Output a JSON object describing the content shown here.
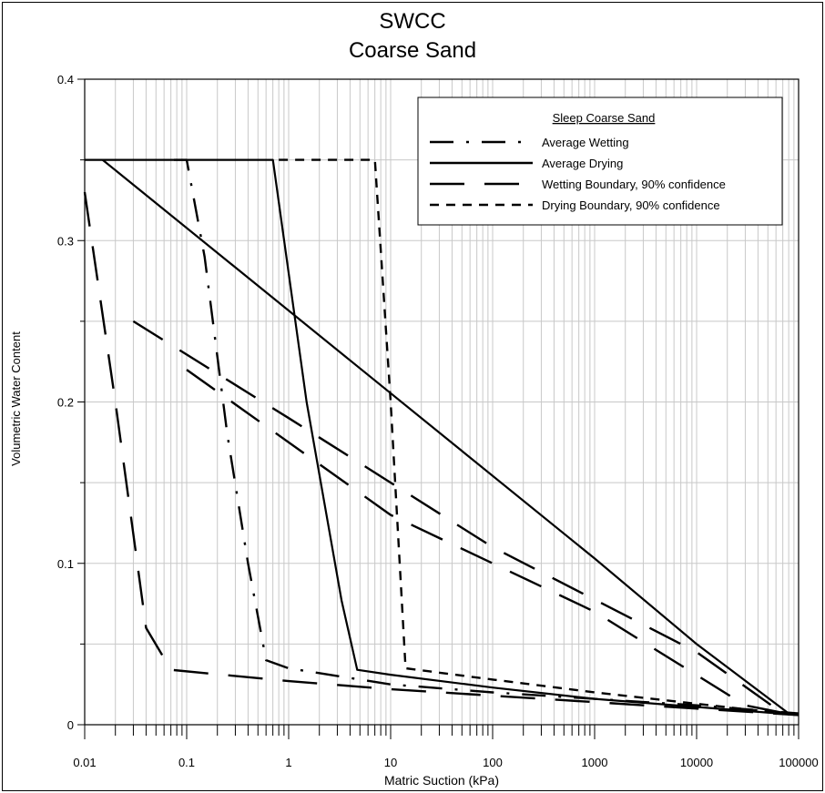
{
  "chart_data": {
    "type": "line",
    "title": "SWCC",
    "subtitle": "Coarse Sand",
    "xlabel": "Matric Suction (kPa)",
    "ylabel": "Volumetric Water Content",
    "xscale": "log",
    "xlim": [
      0.01,
      100000
    ],
    "ylim": [
      0,
      0.4
    ],
    "x_ticks": [
      0.01,
      0.1,
      1,
      10,
      100,
      1000,
      10000,
      100000
    ],
    "x_tick_labels": [
      "0.01",
      "0.1",
      "1",
      "10",
      "100",
      "1000",
      "10000",
      "100000"
    ],
    "y_ticks": [
      0,
      0.1,
      0.2,
      0.3,
      0.4
    ],
    "y_tick_labels": [
      "0",
      "0.1",
      "0.2",
      "0.3",
      "0.4"
    ],
    "grid": true,
    "legend": {
      "title": "Sleep Coarse Sand",
      "position": "top-right"
    },
    "series": [
      {
        "name": "Average Wetting",
        "style": "dash-dot",
        "points": [
          [
            0.075,
            0.35
          ],
          [
            0.1,
            0.35
          ],
          [
            0.15,
            0.29
          ],
          [
            0.25,
            0.18
          ],
          [
            0.4,
            0.1
          ],
          [
            0.6,
            0.04
          ],
          [
            1,
            0.035
          ],
          [
            10,
            0.025
          ],
          [
            100,
            0.02
          ],
          [
            1000,
            0.016
          ],
          [
            10000,
            0.012
          ],
          [
            100000,
            0.007
          ]
        ]
      },
      {
        "name": "Average Drying",
        "style": "solid",
        "points": [
          [
            0.01,
            0.35
          ],
          [
            0.7,
            0.35
          ],
          [
            1.5,
            0.2
          ],
          [
            3.3,
            0.077
          ],
          [
            4.7,
            0.034
          ],
          [
            10,
            0.031
          ],
          [
            100,
            0.023
          ],
          [
            1000,
            0.016
          ],
          [
            10000,
            0.011
          ],
          [
            100000,
            0.006
          ]
        ]
      },
      {
        "name": "Wetting Boundary, 90% confidence",
        "style": "long-dash",
        "points": [
          [
            0.01,
            0.33
          ],
          [
            0.02,
            0.2
          ],
          [
            0.04,
            0.06
          ],
          [
            0.07,
            0.034
          ],
          [
            1,
            0.027
          ],
          [
            10,
            0.022
          ],
          [
            100,
            0.018
          ],
          [
            1000,
            0.014
          ],
          [
            10000,
            0.01
          ],
          [
            100000,
            0.006
          ]
        ]
      },
      {
        "name": "Drying Boundary, 90% confidence",
        "style": "short-dash",
        "points": [
          [
            0.8,
            0.35
          ],
          [
            7,
            0.35
          ],
          [
            10,
            0.2
          ],
          [
            14,
            0.035
          ],
          [
            100,
            0.028
          ],
          [
            1000,
            0.02
          ],
          [
            10000,
            0.013
          ],
          [
            100000,
            0.006
          ]
        ]
      },
      {
        "name": "",
        "style": "solid",
        "points": [
          [
            0.015,
            0.35
          ],
          [
            1000,
            0.103
          ],
          [
            10000,
            0.05
          ],
          [
            80000,
            0.007
          ]
        ]
      },
      {
        "name": "",
        "style": "long-dash",
        "points": [
          [
            0.03,
            0.25
          ],
          [
            1,
            0.19
          ],
          [
            100,
            0.11
          ],
          [
            10000,
            0.045
          ],
          [
            70000,
            0.007
          ]
        ]
      },
      {
        "name": "",
        "style": "long-dash",
        "points": [
          [
            0.1,
            0.22
          ],
          [
            10,
            0.13
          ],
          [
            1000,
            0.07
          ],
          [
            30000,
            0.012
          ],
          [
            90000,
            0.006
          ]
        ]
      }
    ]
  }
}
